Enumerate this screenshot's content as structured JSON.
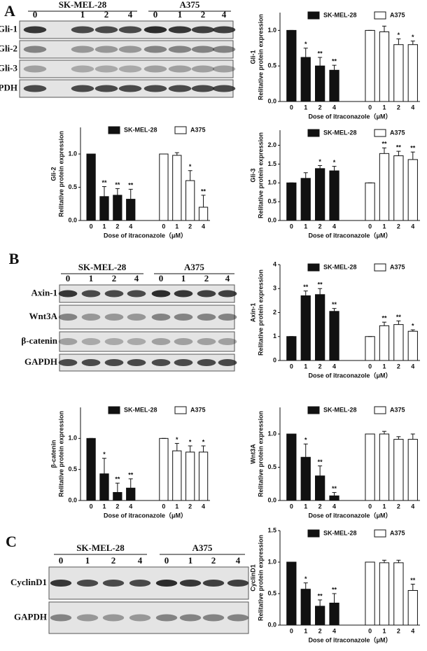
{
  "blots": [
    {
      "panel": "A",
      "groups": [
        "SK-MEL-28",
        "A375"
      ],
      "lanes": [
        "0",
        "1",
        "2",
        "4",
        "0",
        "1",
        "2",
        "4"
      ],
      "rows": [
        "Gli-1",
        "Gli-2",
        "Gli-3",
        "GAPDH"
      ]
    },
    {
      "panel": "B",
      "groups": [
        "SK-MEL-28",
        "A375"
      ],
      "lanes": [
        "0",
        "1",
        "2",
        "4",
        "0",
        "1",
        "2",
        "4"
      ],
      "rows": [
        "Axin-1",
        "Wnt3A",
        "β-catenin",
        "GAPDH"
      ]
    },
    {
      "panel": "C",
      "groups": [
        "SK-MEL-28",
        "A375"
      ],
      "lanes": [
        "0",
        "1",
        "2",
        "4",
        "0",
        "1",
        "2",
        "4"
      ],
      "rows": [
        "CyclinD1",
        "GAPDH"
      ]
    }
  ],
  "chart_data": [
    {
      "type": "bar",
      "title": "Gli-1",
      "ylabel": "Relitative protein expression",
      "xlabel": "Dose of itraconazole（μM）",
      "categories": [
        "0",
        "1",
        "2",
        "4",
        "0",
        "1",
        "2",
        "4"
      ],
      "ylim": [
        0,
        1.25
      ],
      "yticks": [
        {
          "value": 0,
          "label": "0.0"
        },
        {
          "value": 0.5,
          "label": "0.5"
        },
        {
          "value": 1,
          "label": "1.0"
        }
      ],
      "series": [
        {
          "name": "SK-MEL-28",
          "color": "#111111",
          "values": [
            1.0,
            0.62,
            0.5,
            0.44,
            null,
            null,
            null,
            null
          ],
          "errors": [
            0,
            0.13,
            0.12,
            0.07,
            null,
            null,
            null,
            null
          ],
          "sig": [
            null,
            "*",
            "**",
            "**",
            null,
            null,
            null,
            null
          ]
        },
        {
          "name": "A375",
          "color": "#ffffff",
          "values": [
            null,
            null,
            null,
            null,
            1.0,
            0.98,
            0.8,
            0.8
          ],
          "errors": [
            null,
            null,
            null,
            null,
            0,
            0.08,
            0.08,
            0.05
          ],
          "sig": [
            null,
            null,
            null,
            null,
            null,
            null,
            "*",
            "*"
          ]
        }
      ]
    },
    {
      "type": "bar",
      "title": "Gli-2",
      "ylabel": "Relitative protein expression",
      "xlabel": "Dose of itraconazole（μM）",
      "categories": [
        "0",
        "1",
        "2",
        "4",
        "0",
        "1",
        "2",
        "4"
      ],
      "ylim": [
        0,
        1.4
      ],
      "yticks": [
        {
          "value": 0,
          "label": "0.0"
        },
        {
          "value": 0.5,
          "label": "0.5"
        },
        {
          "value": 1,
          "label": "1.0"
        }
      ],
      "series": [
        {
          "name": "SK-MEL-28",
          "color": "#111111",
          "values": [
            1.0,
            0.36,
            0.38,
            0.32,
            null,
            null,
            null,
            null
          ],
          "errors": [
            0,
            0.15,
            0.1,
            0.15,
            null,
            null,
            null,
            null
          ],
          "sig": [
            null,
            "**",
            "**",
            "**",
            null,
            null,
            null,
            null
          ]
        },
        {
          "name": "A375",
          "color": "#ffffff",
          "values": [
            null,
            null,
            null,
            null,
            1.0,
            0.98,
            0.6,
            0.2
          ],
          "errors": [
            null,
            null,
            null,
            null,
            0,
            0.04,
            0.15,
            0.18
          ],
          "sig": [
            null,
            null,
            null,
            null,
            null,
            null,
            "*",
            "**"
          ]
        }
      ]
    },
    {
      "type": "bar",
      "title": "Gli-3",
      "ylabel": "Relitative protein expression",
      "xlabel": "Dose of itraconazole（μM）",
      "categories": [
        "0",
        "1",
        "2",
        "4",
        "0",
        "1",
        "2",
        "4"
      ],
      "ylim": [
        0,
        2.4
      ],
      "yticks": [
        {
          "value": 0,
          "label": "0.0"
        },
        {
          "value": 0.5,
          "label": "0.5"
        },
        {
          "value": 1,
          "label": "1.0"
        },
        {
          "value": 1.5,
          "label": "1.5"
        },
        {
          "value": 2,
          "label": "2.0"
        }
      ],
      "series": [
        {
          "name": "SK-MEL-28",
          "color": "#111111",
          "values": [
            1.0,
            1.12,
            1.38,
            1.32,
            null,
            null,
            null,
            null
          ],
          "errors": [
            0,
            0.15,
            0.08,
            0.12,
            null,
            null,
            null,
            null
          ],
          "sig": [
            null,
            null,
            "*",
            "*",
            null,
            null,
            null,
            null
          ]
        },
        {
          "name": "A375",
          "color": "#ffffff",
          "values": [
            null,
            null,
            null,
            null,
            1.0,
            1.78,
            1.72,
            1.62
          ],
          "errors": [
            null,
            null,
            null,
            null,
            0,
            0.15,
            0.12,
            0.2
          ],
          "sig": [
            null,
            null,
            null,
            null,
            null,
            "**",
            "**",
            "**"
          ]
        }
      ]
    },
    {
      "type": "bar",
      "title": "Axin-1",
      "ylabel": "Relitative protein expression",
      "xlabel": "Dose of itraconazole（μM）",
      "categories": [
        "0",
        "1",
        "2",
        "4",
        "0",
        "1",
        "2",
        "4"
      ],
      "ylim": [
        0,
        4
      ],
      "yticks": [
        0,
        1,
        2,
        3,
        4
      ],
      "series": [
        {
          "name": "SK-MEL-28",
          "color": "#111111",
          "values": [
            1.0,
            2.7,
            2.75,
            2.05,
            null,
            null,
            null,
            null
          ],
          "errors": [
            0,
            0.2,
            0.25,
            0.12,
            null,
            null,
            null,
            null
          ],
          "sig": [
            null,
            "**",
            "**",
            "**",
            null,
            null,
            null,
            null
          ]
        },
        {
          "name": "A375",
          "color": "#ffffff",
          "values": [
            null,
            null,
            null,
            null,
            1.0,
            1.45,
            1.5,
            1.22
          ],
          "errors": [
            null,
            null,
            null,
            null,
            0,
            0.15,
            0.15,
            0.06
          ],
          "sig": [
            null,
            null,
            null,
            null,
            null,
            "**",
            "**",
            "*"
          ]
        }
      ]
    },
    {
      "type": "bar",
      "title": "β-catenin",
      "ylabel": "Relitative protein expression",
      "xlabel": "Dose of itraconazole（μM）",
      "categories": [
        "0",
        "1",
        "2",
        "4",
        "0",
        "1",
        "2",
        "4"
      ],
      "ylim": [
        0,
        1.5
      ],
      "yticks": [
        {
          "value": 0,
          "label": "0.0"
        },
        {
          "value": 0.5,
          "label": "0.5"
        },
        {
          "value": 1,
          "label": "1.0"
        }
      ],
      "series": [
        {
          "name": "SK-MEL-28",
          "color": "#111111",
          "values": [
            1.0,
            0.43,
            0.13,
            0.2,
            null,
            null,
            null,
            null
          ],
          "errors": [
            0,
            0.25,
            0.15,
            0.15,
            null,
            null,
            null,
            null
          ],
          "sig": [
            null,
            "*",
            "**",
            "**",
            null,
            null,
            null,
            null
          ]
        },
        {
          "name": "A375",
          "color": "#ffffff",
          "values": [
            null,
            null,
            null,
            null,
            1.0,
            0.8,
            0.78,
            0.78
          ],
          "errors": [
            null,
            null,
            null,
            null,
            0,
            0.12,
            0.1,
            0.1
          ],
          "sig": [
            null,
            null,
            null,
            null,
            null,
            "*",
            "*",
            "*"
          ]
        }
      ]
    },
    {
      "type": "bar",
      "title": "Wnt3A",
      "ylabel": "Relitative protein expression",
      "xlabel": "Dose of itraconazole（μM）",
      "categories": [
        "0",
        "1",
        "2",
        "4",
        "0",
        "1",
        "2",
        "4"
      ],
      "ylim": [
        0,
        1.4
      ],
      "yticks": [
        {
          "value": 0,
          "label": "0.0"
        },
        {
          "value": 0.5,
          "label": "0.5"
        },
        {
          "value": 1,
          "label": "1.0"
        }
      ],
      "series": [
        {
          "name": "SK-MEL-28",
          "color": "#111111",
          "values": [
            1.0,
            0.65,
            0.37,
            0.07,
            null,
            null,
            null,
            null
          ],
          "errors": [
            0,
            0.2,
            0.15,
            0.05,
            null,
            null,
            null,
            null
          ],
          "sig": [
            null,
            "*",
            "**",
            "**",
            null,
            null,
            null,
            null
          ]
        },
        {
          "name": "A375",
          "color": "#ffffff",
          "values": [
            null,
            null,
            null,
            null,
            1.0,
            1.0,
            0.92,
            0.92
          ],
          "errors": [
            null,
            null,
            null,
            null,
            0,
            0.04,
            0.04,
            0.08
          ],
          "sig": [
            null,
            null,
            null,
            null,
            null,
            null,
            null,
            null
          ]
        }
      ]
    },
    {
      "type": "bar",
      "title": "CyclinD1",
      "ylabel": "Relitative protein expression",
      "xlabel": "Dose of itraconazole（μM）",
      "categories": [
        "0",
        "1",
        "2",
        "4",
        "0",
        "1",
        "2",
        "4"
      ],
      "ylim": [
        0,
        1.5
      ],
      "yticks": [
        {
          "value": 0,
          "label": "0.0"
        },
        {
          "value": 0.5,
          "label": "0.5"
        },
        {
          "value": 1,
          "label": "1.0"
        },
        {
          "value": 1.5,
          "label": "1.5"
        }
      ],
      "series": [
        {
          "name": "SK-MEL-28",
          "color": "#111111",
          "values": [
            1.0,
            0.57,
            0.3,
            0.35,
            null,
            null,
            null,
            null
          ],
          "errors": [
            0,
            0.1,
            0.1,
            0.15,
            null,
            null,
            null,
            null
          ],
          "sig": [
            null,
            "*",
            "**",
            "**",
            null,
            null,
            null,
            null
          ]
        },
        {
          "name": "A375",
          "color": "#ffffff",
          "values": [
            null,
            null,
            null,
            null,
            1.0,
            0.99,
            0.99,
            0.55
          ],
          "errors": [
            null,
            null,
            null,
            null,
            0,
            0.04,
            0.04,
            0.1
          ],
          "sig": [
            null,
            null,
            null,
            null,
            null,
            null,
            null,
            "**"
          ]
        }
      ]
    }
  ]
}
